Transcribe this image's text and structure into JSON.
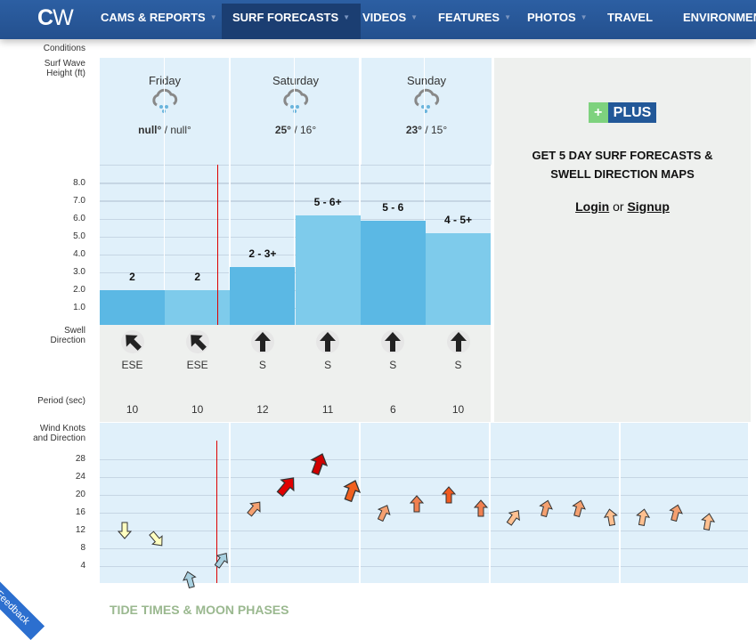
{
  "nav": {
    "logo": "CW",
    "items": [
      {
        "label": "CAMS & REPORTS",
        "active": false
      },
      {
        "label": "SURF FORECASTS",
        "active": true
      },
      {
        "label": "VIDEOS",
        "active": false
      },
      {
        "label": "FEATURES",
        "active": false
      },
      {
        "label": "PHOTOS",
        "active": false
      },
      {
        "label": "TRAVEL",
        "active": false
      },
      {
        "label": "ENVIRONMENT",
        "active": false
      }
    ]
  },
  "labels": {
    "conditions": "Conditions",
    "wave_height": "Surf Wave Height (ft)",
    "swell_direction": "Swell Direction",
    "period": "Period (sec)",
    "wind": "Wind Knots and Direction"
  },
  "days": [
    {
      "name": "Friday",
      "icon": "rain-cloud-icon",
      "high": "null°",
      "low": "null°"
    },
    {
      "name": "Saturday",
      "icon": "rain-cloud-icon",
      "high": "25°",
      "low": "16°"
    },
    {
      "name": "Sunday",
      "icon": "rain-cloud-icon",
      "high": "23°",
      "low": "15°"
    }
  ],
  "wave_ticks": [
    "8.0",
    "7.0",
    "6.0",
    "5.0",
    "4.0",
    "3.0",
    "2.0",
    "1.0"
  ],
  "waves": [
    {
      "label": "2",
      "height": 2.0,
      "color": "#5bb8e4"
    },
    {
      "label": "2",
      "height": 2.0,
      "color": "#7ecbeb"
    },
    {
      "label": "2 - 3+",
      "height": 3.3,
      "color": "#5bb8e4"
    },
    {
      "label": "5 - 6+",
      "height": 6.2,
      "color": "#7ecbeb"
    },
    {
      "label": "5 - 6",
      "height": 5.9,
      "color": "#5bb8e4"
    },
    {
      "label": "4 - 5+",
      "height": 5.2,
      "color": "#7ecbeb"
    }
  ],
  "swell": [
    {
      "dir": "ESE",
      "rot": -45,
      "period": "10"
    },
    {
      "dir": "ESE",
      "rot": -45,
      "period": "10"
    },
    {
      "dir": "S",
      "rot": 0,
      "period": "12"
    },
    {
      "dir": "S",
      "rot": 0,
      "period": "11"
    },
    {
      "dir": "S",
      "rot": 0,
      "period": "6"
    },
    {
      "dir": "S",
      "rot": 0,
      "period": "10"
    }
  ],
  "wind_ticks": [
    "28",
    "24",
    "20",
    "16",
    "12",
    "8",
    "4"
  ],
  "wind": [
    {
      "speed": 12,
      "rot": 180,
      "color": "#ffffc0"
    },
    {
      "speed": 10,
      "rot": 140,
      "color": "#ffffc0"
    },
    {
      "speed": 1,
      "rot": -15,
      "color": "#a8d0e0"
    },
    {
      "speed": 5.5,
      "rot": 35,
      "color": "#a8d0e0"
    },
    {
      "speed": 17,
      "rot": 40,
      "color": "#f4a070"
    },
    {
      "speed": 22,
      "rot": 40,
      "color": "#e00000"
    },
    {
      "speed": 27,
      "rot": 20,
      "color": "#d00000"
    },
    {
      "speed": 21,
      "rot": 20,
      "color": "#f06020"
    },
    {
      "speed": 16,
      "rot": 25,
      "color": "#f4a070"
    },
    {
      "speed": 18,
      "rot": 0,
      "color": "#f08050"
    },
    {
      "speed": 20,
      "rot": 0,
      "color": "#f05a20"
    },
    {
      "speed": 17,
      "rot": 0,
      "color": "#f08050"
    },
    {
      "speed": 15,
      "rot": 35,
      "color": "#ffc090"
    },
    {
      "speed": 17,
      "rot": 15,
      "color": "#f4a070"
    },
    {
      "speed": 17,
      "rot": 15,
      "color": "#f4a070"
    },
    {
      "speed": 15,
      "rot": -10,
      "color": "#ffc090"
    },
    {
      "speed": 15,
      "rot": 10,
      "color": "#ffc090"
    },
    {
      "speed": 16,
      "rot": 15,
      "color": "#f4a070"
    },
    {
      "speed": 14,
      "rot": 10,
      "color": "#ffc090"
    }
  ],
  "plus": {
    "badge_plus": "+",
    "badge_text": "PLUS",
    "headline_1": "GET 5 DAY SURF FORECASTS &",
    "headline_2": "SWELL DIRECTION MAPS",
    "login": "Login",
    "or": "or",
    "signup": "Signup"
  },
  "tide_title": "TIDE TIMES & MOON PHASES",
  "feedback": "Feedback"
}
